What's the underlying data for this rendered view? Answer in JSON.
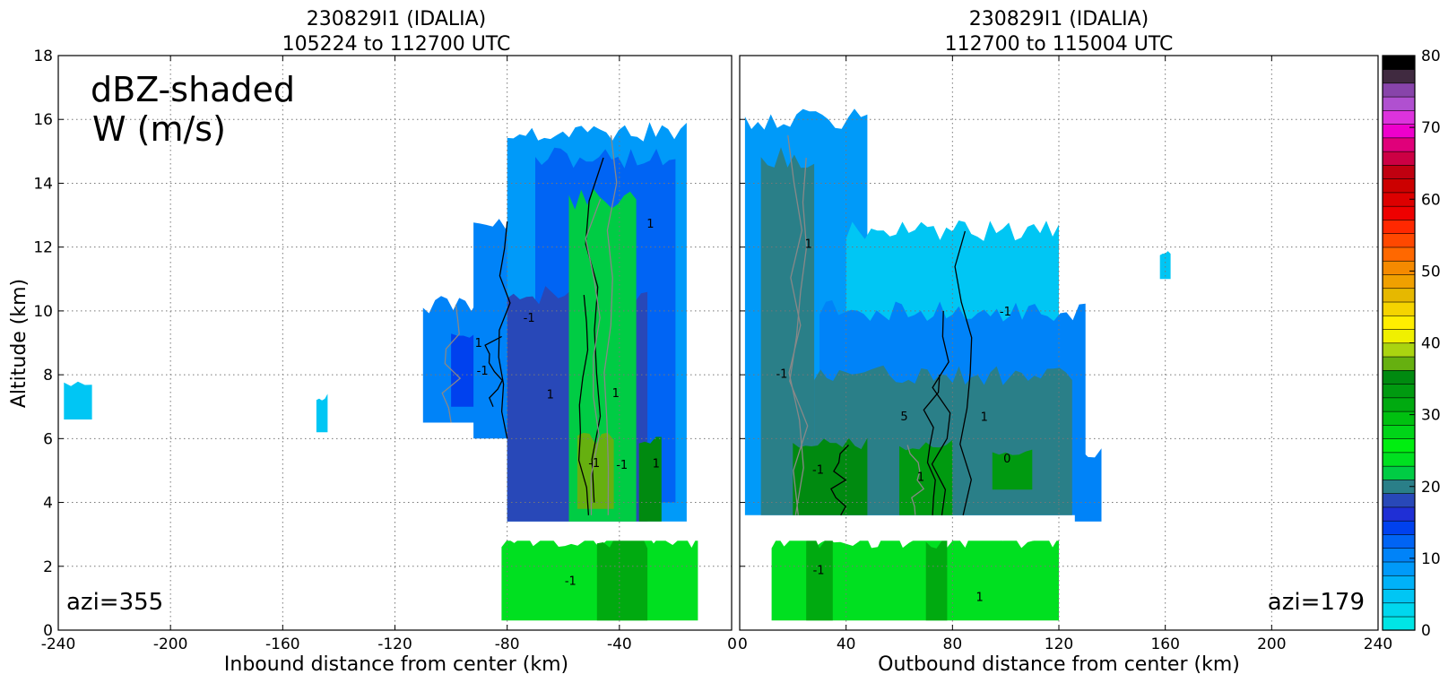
{
  "chart_data": [
    {
      "type": "heatmap",
      "title_line1": "230829I1 (IDALIA)",
      "title_line2": "105224 to 112700 UTC",
      "xlabel": "Inbound distance from center (km)",
      "ylabel": "Altitude (km)",
      "xlim": [
        -240,
        0
      ],
      "ylim": [
        0,
        18
      ],
      "xticks": [
        "-240",
        "-200",
        "-160",
        "-120",
        "-80",
        "-40",
        "0"
      ],
      "yticks": [
        "0",
        "2",
        "4",
        "6",
        "8",
        "10",
        "12",
        "14",
        "16",
        "18"
      ],
      "grid": true,
      "annotation_line1": "dBZ-shaded",
      "annotation_line2": "W (m/s)",
      "azimuth_label": "azi=355",
      "reflectivity_columns": [
        {
          "x": [
            -110,
            -82
          ],
          "y": [
            6.5,
            10.2
          ],
          "dbz": 10
        },
        {
          "x": [
            -100,
            -78
          ],
          "y": [
            7.0,
            9.2
          ],
          "dbz": 14
        },
        {
          "x": [
            -92,
            -60
          ],
          "y": [
            6.0,
            12.8
          ],
          "dbz": 10
        },
        {
          "x": [
            -80,
            -16
          ],
          "y": [
            3.4,
            15.6
          ],
          "dbz": 8
        },
        {
          "x": [
            -70,
            -20
          ],
          "y": [
            4.0,
            14.8
          ],
          "dbz": 12
        },
        {
          "x": [
            -80,
            -30
          ],
          "y": [
            3.4,
            10.5
          ],
          "dbz": 18
        },
        {
          "x": [
            -58,
            -34
          ],
          "y": [
            3.4,
            13.5
          ],
          "dbz": 22
        },
        {
          "x": [
            -55,
            -42
          ],
          "y": [
            3.8,
            6.0
          ],
          "dbz": 38
        },
        {
          "x": [
            -33,
            -25
          ],
          "y": [
            3.4,
            6.0
          ],
          "dbz": 36
        },
        {
          "x": [
            -82,
            -12
          ],
          "y": [
            0.3,
            2.8
          ],
          "dbz": 24
        },
        {
          "x": [
            -48,
            -30
          ],
          "y": [
            0.3,
            2.8
          ],
          "dbz": 32
        },
        {
          "x": [
            -238,
            -228
          ],
          "y": [
            6.6,
            7.7
          ],
          "dbz": 4
        },
        {
          "x": [
            -148,
            -144
          ],
          "y": [
            6.2,
            7.3
          ],
          "dbz": 4
        }
      ],
      "w_contour_labels": [
        "1",
        "-1",
        "-1",
        "1",
        "1",
        "-1",
        "1",
        "-1",
        "1",
        "-1"
      ]
    },
    {
      "type": "heatmap",
      "title_line1": "230829I1 (IDALIA)",
      "title_line2": "112700 to 115004 UTC",
      "xlabel": "Outbound distance from center (km)",
      "ylabel": "",
      "xlim": [
        0,
        240
      ],
      "ylim": [
        0,
        18
      ],
      "xticks": [
        "0",
        "40",
        "80",
        "120",
        "160",
        "200",
        "240"
      ],
      "yticks": [],
      "grid": true,
      "azimuth_label": "azi=179",
      "reflectivity_columns": [
        {
          "x": [
            2,
            48
          ],
          "y": [
            3.6,
            16.0
          ],
          "dbz": 8
        },
        {
          "x": [
            40,
            120
          ],
          "y": [
            3.6,
            12.5
          ],
          "dbz": 4
        },
        {
          "x": [
            30,
            130
          ],
          "y": [
            3.6,
            10.0
          ],
          "dbz": 10
        },
        {
          "x": [
            8,
            28
          ],
          "y": [
            3.6,
            14.8
          ],
          "dbz": 20
        },
        {
          "x": [
            28,
            125
          ],
          "y": [
            3.6,
            8.0
          ],
          "dbz": 20
        },
        {
          "x": [
            20,
            48
          ],
          "y": [
            3.6,
            5.8
          ],
          "dbz": 36
        },
        {
          "x": [
            60,
            80
          ],
          "y": [
            3.6,
            5.8
          ],
          "dbz": 34
        },
        {
          "x": [
            95,
            110
          ],
          "y": [
            4.4,
            5.6
          ],
          "dbz": 34
        },
        {
          "x": [
            12,
            120
          ],
          "y": [
            0.3,
            2.8
          ],
          "dbz": 24
        },
        {
          "x": [
            25,
            35
          ],
          "y": [
            0.3,
            2.8
          ],
          "dbz": 32
        },
        {
          "x": [
            70,
            78
          ],
          "y": [
            0.3,
            2.8
          ],
          "dbz": 32
        },
        {
          "x": [
            126,
            136
          ],
          "y": [
            3.4,
            5.5
          ],
          "dbz": 10
        },
        {
          "x": [
            158,
            162
          ],
          "y": [
            11.0,
            11.8
          ],
          "dbz": 4
        }
      ],
      "w_contour_labels": [
        "1",
        "-1",
        "1",
        "-1",
        "5",
        "-1",
        "1",
        "0",
        "1",
        "-1"
      ]
    }
  ],
  "colorbar": {
    "ticks": [
      "0",
      "10",
      "20",
      "30",
      "40",
      "50",
      "60",
      "70",
      "80"
    ],
    "min": 0,
    "max": 80,
    "colors": [
      "#00e5e5",
      "#00d7ee",
      "#00c6f4",
      "#00b2f8",
      "#009af9",
      "#0083f8",
      "#0064f4",
      "#0041ee",
      "#1f2fd5",
      "#2848b8",
      "#2a7f88",
      "#00cc44",
      "#00e020",
      "#00ee10",
      "#00d418",
      "#00c010",
      "#00aa10",
      "#009a10",
      "#008a10",
      "#66b010",
      "#aad410",
      "#f0f000",
      "#ffee00",
      "#f5d400",
      "#e6b800",
      "#f0a000",
      "#f58a00",
      "#ff6800",
      "#ff4800",
      "#ff2800",
      "#ee0000",
      "#dd0000",
      "#cc0000",
      "#c00010",
      "#cc0044",
      "#e0007a",
      "#ee00cc",
      "#dd33dd",
      "#b050d0",
      "#8844aa",
      "#402a40",
      "#000000"
    ]
  }
}
